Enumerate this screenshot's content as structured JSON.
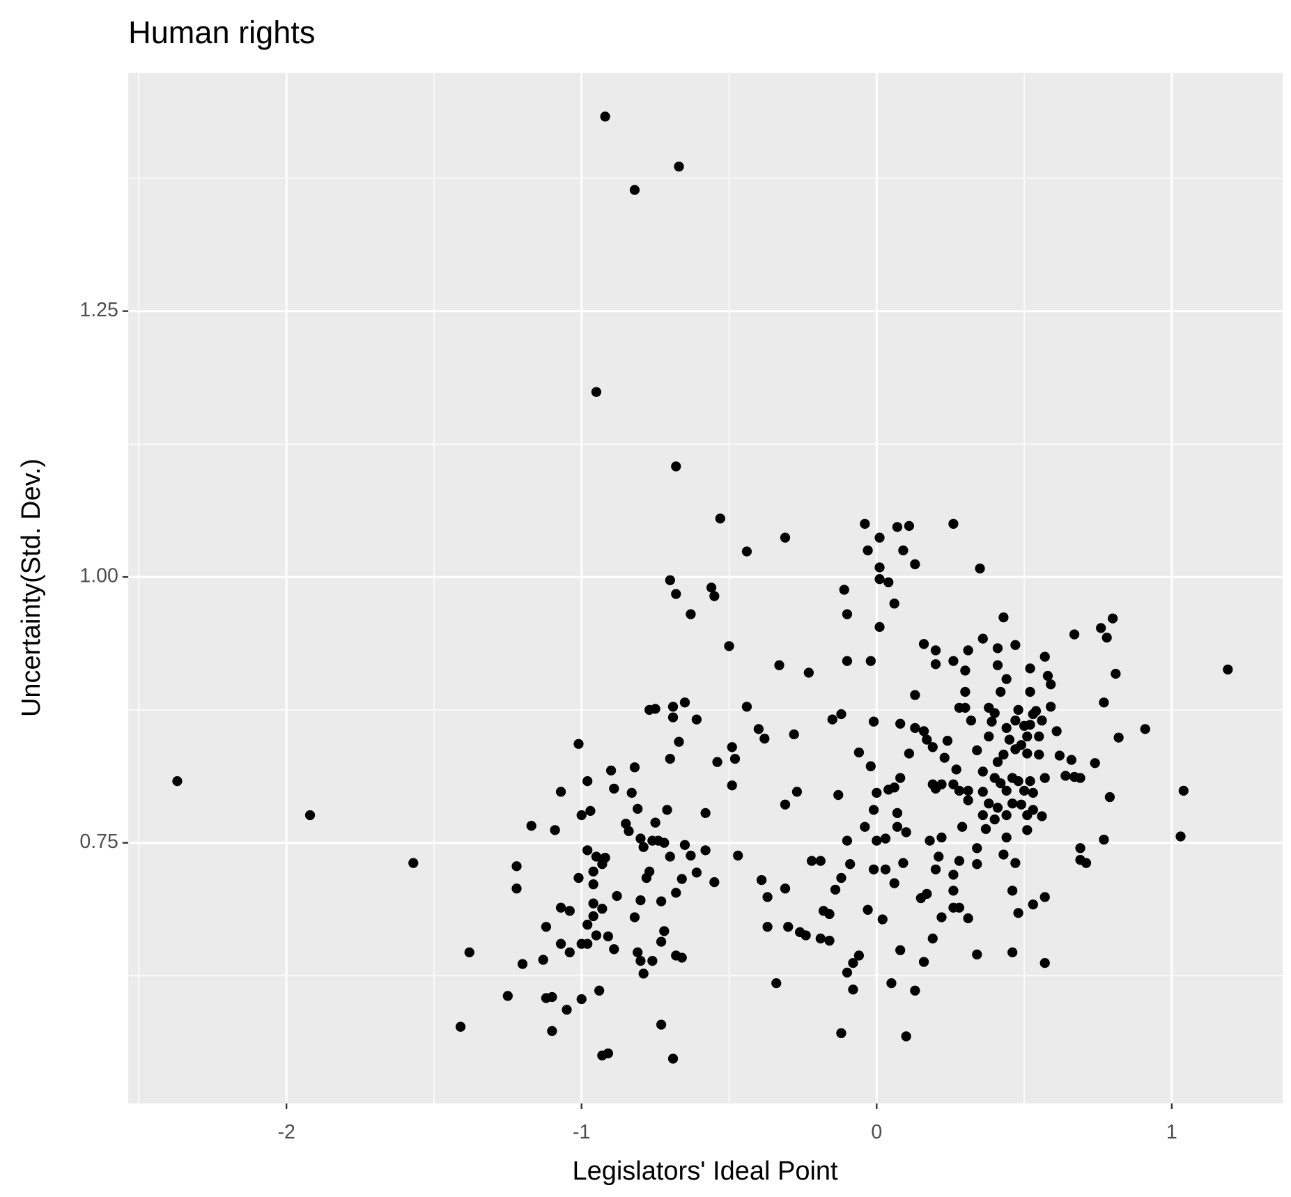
{
  "chart_data": {
    "type": "scatter",
    "title": "Human rights",
    "x_label": "Legislators' Ideal Point",
    "y_label": "Uncertainty(Std. Dev.)",
    "color": "#000000",
    "grid": true,
    "xlim": [
      -2.536,
      1.376
    ],
    "ylim": [
      0.505,
      1.474
    ],
    "xticks": [
      -2,
      -1,
      0,
      1
    ],
    "yticks": [
      0.75,
      {
        "value": 1,
        "label": "1.00"
      },
      1.25
    ],
    "x_minor_grid": [
      -2.5,
      -1.5,
      -0.5,
      0.5
    ],
    "y_minor_grid": [
      0.625,
      0.875,
      1.125,
      1.375
    ],
    "x": [
      -0.92,
      -0.67,
      -0.82,
      -0.95,
      -0.68,
      -0.53,
      -0.44,
      -0.31,
      -0.7,
      -0.68,
      -0.56,
      -0.55,
      -0.63,
      -0.5,
      -0.04,
      -0.03,
      0.01,
      0.07,
      0.11,
      0.26,
      0.09,
      0.13,
      0.01,
      0.01,
      0.04,
      0.06,
      -0.11,
      -0.1,
      0.01,
      0.35,
      0.43,
      0.36,
      0.41,
      0.47,
      0.16,
      0.2,
      0.2,
      0.26,
      0.31,
      0.3,
      0.41,
      0.44,
      0.52,
      0.57,
      0.58,
      0.59,
      0.67,
      0.76,
      0.8,
      0.78,
      0.81,
      0.77,
      0.82,
      0.91,
      1.19,
      1.04,
      1.03,
      0.79,
      0.74,
      0.77,
      0.69,
      0.69,
      0.71,
      0.69,
      0.67,
      0.64,
      0.66,
      0.62,
      0.61,
      0.59,
      0.57,
      0.57,
      0.53,
      0.48,
      0.46,
      0.46,
      0.47,
      0.43,
      0.34,
      0.34,
      0.34,
      0.28,
      0.31,
      0.28,
      0.26,
      0.26,
      0.26,
      0.22,
      0.21,
      0.2,
      0.19,
      0.17,
      0.15,
      0.16,
      0.13,
      0.1,
      0.08,
      0.06,
      0.09,
      0.1,
      0.07,
      0.07,
      0.05,
      0.03,
      0.02,
      0.03,
      0.0,
      -0.01,
      -0.03,
      -0.04,
      -0.06,
      -0.08,
      -0.08,
      -0.1,
      -0.12,
      -0.09,
      -0.1,
      -0.12,
      -0.14,
      -0.16,
      -0.18,
      -0.16,
      -0.19,
      -0.19,
      -0.22,
      -0.24,
      -0.26,
      -0.3,
      -0.37,
      -0.34,
      -0.31,
      -0.37,
      -0.39,
      -0.31,
      -0.27,
      -0.28,
      -0.33,
      -0.23,
      -0.15,
      -0.12,
      -0.1,
      -0.02,
      -0.01,
      -0.06,
      -0.02,
      -0.13,
      0.0,
      -0.01,
      0.04,
      0.06,
      0.08,
      0.08,
      0.11,
      0.13,
      0.13,
      0.16,
      0.17,
      0.19,
      0.19,
      0.2,
      0.22,
      0.23,
      0.24,
      0.27,
      0.26,
      0.28,
      0.31,
      0.31,
      0.29,
      0.22,
      0.18,
      0.28,
      0.3,
      0.3,
      0.32,
      0.34,
      0.36,
      0.36,
      0.36,
      0.37,
      0.38,
      0.39,
      0.38,
      0.4,
      0.42,
      0.44,
      0.45,
      0.47,
      0.48,
      0.5,
      0.51,
      0.51,
      0.52,
      0.53,
      0.52,
      0.55,
      0.55,
      0.54,
      0.56,
      0.49,
      0.47,
      0.43,
      0.41,
      0.4,
      0.42,
      0.44,
      0.46,
      0.48,
      0.5,
      0.52,
      0.57,
      0.53,
      0.53,
      0.51,
      0.49,
      0.46,
      0.44,
      0.41,
      0.56,
      0.51,
      0.44,
      0.4,
      0.38,
      -2.37,
      -1.92,
      -1.57,
      -1.41,
      -1.38,
      -1.25,
      -1.22,
      -1.22,
      -1.2,
      -1.17,
      -1.13,
      -1.12,
      -1.12,
      -1.1,
      -1.1,
      -1.09,
      -1.07,
      -1.07,
      -1.07,
      -1.05,
      -1.04,
      -1.04,
      -1.01,
      -1.01,
      -1.0,
      -1.0,
      -1.0,
      -0.98,
      -0.98,
      -0.98,
      -0.98,
      -0.97,
      -0.96,
      -0.96,
      -0.96,
      -0.96,
      -0.95,
      -0.95,
      -0.94,
      -0.93,
      -0.93,
      -0.93,
      -0.92,
      -0.91,
      -0.91,
      -0.9,
      -0.89,
      -0.89,
      -0.88,
      -0.85,
      -0.84,
      -0.83,
      -0.82,
      -0.82,
      -0.81,
      -0.81,
      -0.8,
      -0.8,
      -0.8,
      -0.79,
      -0.79,
      -0.78,
      -0.77,
      -0.77,
      -0.76,
      -0.76,
      -0.75,
      -0.75,
      -0.74,
      -0.73,
      -0.73,
      -0.73,
      -0.72,
      -0.72,
      -0.71,
      -0.7,
      -0.7,
      -0.69,
      -0.69,
      -0.69,
      -0.68,
      -0.68,
      -0.67,
      -0.66,
      -0.65,
      -0.65,
      -0.63,
      -0.61,
      -0.61,
      -0.58,
      -0.58,
      -0.55,
      -0.54,
      -0.49,
      -0.48,
      -0.49,
      -0.47,
      -0.44,
      -0.4,
      -0.38,
      -0.66
    ],
    "values": [
      1.433,
      1.386,
      1.364,
      1.174,
      1.104,
      1.055,
      1.024,
      1.037,
      0.997,
      0.984,
      0.99,
      0.982,
      0.965,
      0.935,
      1.05,
      1.025,
      1.037,
      1.047,
      1.048,
      1.05,
      1.025,
      1.012,
      1.009,
      0.998,
      0.995,
      0.975,
      0.988,
      0.965,
      0.953,
      1.008,
      0.962,
      0.942,
      0.933,
      0.936,
      0.937,
      0.931,
      0.918,
      0.921,
      0.931,
      0.912,
      0.917,
      0.904,
      0.914,
      0.925,
      0.907,
      0.899,
      0.946,
      0.952,
      0.961,
      0.943,
      0.909,
      0.882,
      0.849,
      0.857,
      0.913,
      0.799,
      0.756,
      0.793,
      0.825,
      0.753,
      0.745,
      0.734,
      0.731,
      0.811,
      0.812,
      0.813,
      0.828,
      0.832,
      0.855,
      0.878,
      0.637,
      0.699,
      0.692,
      0.684,
      0.705,
      0.647,
      0.731,
      0.739,
      0.645,
      0.745,
      0.73,
      0.733,
      0.679,
      0.689,
      0.689,
      0.705,
      0.72,
      0.68,
      0.737,
      0.725,
      0.66,
      0.702,
      0.698,
      0.638,
      0.611,
      0.568,
      0.649,
      0.712,
      0.731,
      0.76,
      0.765,
      0.778,
      0.618,
      0.754,
      0.678,
      0.725,
      0.752,
      0.725,
      0.687,
      0.765,
      0.644,
      0.612,
      0.637,
      0.628,
      0.571,
      0.73,
      0.752,
      0.717,
      0.706,
      0.683,
      0.686,
      0.658,
      0.66,
      0.733,
      0.733,
      0.663,
      0.666,
      0.671,
      0.671,
      0.618,
      0.707,
      0.699,
      0.715,
      0.786,
      0.798,
      0.852,
      0.917,
      0.91,
      0.866,
      0.871,
      0.921,
      0.921,
      0.864,
      0.835,
      0.822,
      0.795,
      0.797,
      0.781,
      0.8,
      0.802,
      0.811,
      0.862,
      0.834,
      0.858,
      0.889,
      0.855,
      0.847,
      0.84,
      0.805,
      0.801,
      0.805,
      0.83,
      0.846,
      0.819,
      0.805,
      0.799,
      0.799,
      0.79,
      0.765,
      0.755,
      0.752,
      0.877,
      0.892,
      0.877,
      0.865,
      0.837,
      0.817,
      0.798,
      0.776,
      0.763,
      0.877,
      0.864,
      0.85,
      0.872,
      0.892,
      0.858,
      0.847,
      0.865,
      0.875,
      0.86,
      0.85,
      0.834,
      0.861,
      0.871,
      0.892,
      0.85,
      0.833,
      0.874,
      0.865,
      0.842,
      0.838,
      0.833,
      0.826,
      0.811,
      0.806,
      0.799,
      0.811,
      0.808,
      0.799,
      0.808,
      0.811,
      0.797,
      0.781,
      0.776,
      0.786,
      0.787,
      0.776,
      0.783,
      0.775,
      0.762,
      0.755,
      0.772,
      0.787,
      0.808,
      0.776,
      0.731,
      0.577,
      0.647,
      0.606,
      0.728,
      0.707,
      0.636,
      0.766,
      0.64,
      0.671,
      0.604,
      0.605,
      0.573,
      0.762,
      0.655,
      0.689,
      0.798,
      0.593,
      0.686,
      0.647,
      0.717,
      0.843,
      0.655,
      0.776,
      0.603,
      0.655,
      0.673,
      0.743,
      0.808,
      0.78,
      0.681,
      0.693,
      0.711,
      0.723,
      0.737,
      0.663,
      0.611,
      0.55,
      0.688,
      0.73,
      0.736,
      0.662,
      0.552,
      0.818,
      0.801,
      0.65,
      0.7,
      0.768,
      0.761,
      0.797,
      0.821,
      0.68,
      0.782,
      0.647,
      0.696,
      0.754,
      0.639,
      0.627,
      0.746,
      0.717,
      0.875,
      0.723,
      0.752,
      0.639,
      0.876,
      0.769,
      0.752,
      0.579,
      0.657,
      0.695,
      0.75,
      0.667,
      0.781,
      0.829,
      0.737,
      0.868,
      0.878,
      0.547,
      0.703,
      0.644,
      0.845,
      0.642,
      0.748,
      0.882,
      0.738,
      0.722,
      0.866,
      0.778,
      0.743,
      0.713,
      0.826,
      0.84,
      0.829,
      0.804,
      0.738,
      0.878,
      0.857,
      0.848,
      0.716
    ]
  }
}
